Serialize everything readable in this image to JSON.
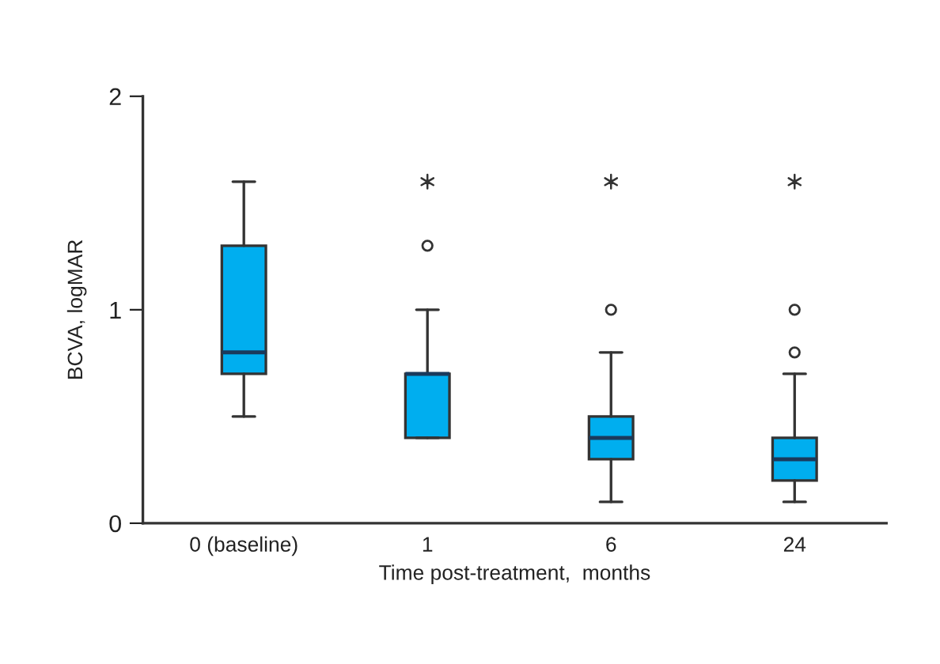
{
  "chart_data": {
    "type": "box",
    "xlabel": "Time post-treatment,  months",
    "ylabel": "BCVA, logMAR",
    "categories": [
      "0 (baseline)",
      "1",
      "6",
      "24"
    ],
    "ylim": [
      0,
      2
    ],
    "yticks": [
      0,
      1,
      2
    ],
    "grid": false,
    "legend": false,
    "series": [
      {
        "color": "#00aeef",
        "boxes": [
          {
            "low": 0.5,
            "q1": 0.7,
            "median": 0.8,
            "q3": 1.3,
            "high": 1.6
          },
          {
            "low": 0.4,
            "q1": 0.4,
            "median": 0.7,
            "q3": 0.7,
            "high": 1.0,
            "outliers": [
              1.3
            ]
          },
          {
            "low": 0.1,
            "q1": 0.3,
            "median": 0.4,
            "q3": 0.5,
            "high": 0.8,
            "outliers": [
              1.0
            ]
          },
          {
            "low": 0.1,
            "q1": 0.2,
            "median": 0.3,
            "q3": 0.4,
            "high": 0.7,
            "outliers": [
              1.0,
              0.8
            ]
          }
        ]
      },
      {
        "type": "scatter",
        "color": "#333333",
        "marker": "cross",
        "x": [
          "1",
          "6",
          "24"
        ],
        "values": [
          1.6,
          1.6,
          1.6
        ]
      }
    ]
  }
}
